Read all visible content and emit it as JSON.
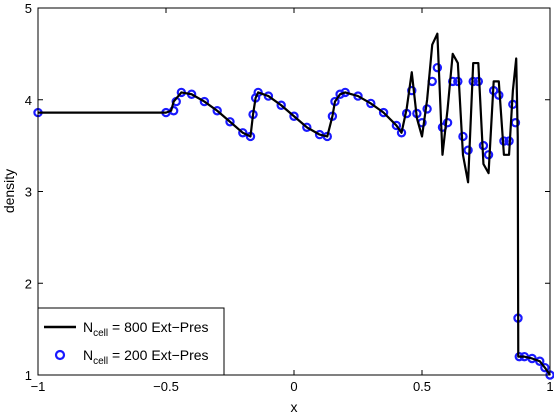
{
  "chart_data": {
    "type": "line",
    "xlabel": "x",
    "ylabel": "density",
    "xlim": [
      -1,
      1
    ],
    "ylim": [
      1,
      5
    ],
    "x_ticks": [
      -1,
      -0.5,
      0,
      0.5,
      1
    ],
    "x_tick_labels": [
      "−1",
      "−0.5",
      "0",
      "0.5",
      "1"
    ],
    "y_ticks": [
      1,
      2,
      3,
      4,
      5
    ],
    "y_tick_labels": [
      "1",
      "2",
      "3",
      "4",
      "5"
    ],
    "grid": false,
    "legend_position": "bottom-left",
    "series": [
      {
        "name_main": "N",
        "name_sub": "cell",
        "name_rest": " = 800 Ext−Pres",
        "style": "line",
        "color": "#000000",
        "x": [
          -1,
          -0.5,
          -0.48,
          -0.47,
          -0.44,
          -0.4,
          -0.35,
          -0.3,
          -0.25,
          -0.2,
          -0.17,
          -0.16,
          -0.15,
          -0.14,
          -0.1,
          -0.05,
          0.0,
          0.05,
          0.1,
          0.13,
          0.15,
          0.16,
          0.18,
          0.2,
          0.25,
          0.3,
          0.35,
          0.4,
          0.42,
          0.44,
          0.46,
          0.48,
          0.5,
          0.52,
          0.54,
          0.56,
          0.58,
          0.6,
          0.62,
          0.64,
          0.66,
          0.68,
          0.7,
          0.72,
          0.74,
          0.76,
          0.78,
          0.8,
          0.82,
          0.84,
          0.855,
          0.868,
          0.874,
          0.876,
          0.88,
          0.9,
          0.93,
          0.96,
          0.98,
          1.0
        ],
        "y": [
          3.86,
          3.86,
          3.88,
          3.98,
          4.08,
          4.06,
          3.98,
          3.88,
          3.76,
          3.64,
          3.6,
          3.84,
          4.02,
          4.08,
          4.04,
          3.94,
          3.82,
          3.7,
          3.62,
          3.6,
          3.82,
          3.98,
          4.06,
          4.08,
          4.04,
          3.96,
          3.86,
          3.72,
          3.64,
          3.9,
          4.3,
          3.8,
          3.6,
          4.0,
          4.6,
          4.72,
          3.4,
          3.9,
          4.5,
          4.4,
          3.4,
          3.1,
          4.4,
          4.4,
          3.3,
          3.2,
          4.2,
          4.2,
          3.4,
          3.4,
          4.1,
          4.45,
          3.6,
          1.2,
          1.2,
          1.2,
          1.18,
          1.15,
          1.08,
          1.0
        ]
      },
      {
        "name_main": "N",
        "name_sub": "cell",
        "name_rest": " = 200 Ext−Pres",
        "style": "markers",
        "color": "#1a1aff",
        "x": [
          -1,
          -0.5,
          -0.47,
          -0.46,
          -0.44,
          -0.4,
          -0.35,
          -0.3,
          -0.25,
          -0.2,
          -0.17,
          -0.16,
          -0.15,
          -0.14,
          -0.1,
          -0.05,
          0.0,
          0.05,
          0.1,
          0.13,
          0.15,
          0.16,
          0.18,
          0.2,
          0.25,
          0.3,
          0.35,
          0.4,
          0.42,
          0.44,
          0.46,
          0.48,
          0.5,
          0.52,
          0.54,
          0.56,
          0.58,
          0.6,
          0.62,
          0.64,
          0.66,
          0.68,
          0.7,
          0.72,
          0.74,
          0.76,
          0.78,
          0.8,
          0.82,
          0.84,
          0.855,
          0.865,
          0.875,
          0.88,
          0.9,
          0.93,
          0.96,
          0.98,
          1.0
        ],
        "y": [
          3.86,
          3.86,
          3.88,
          3.98,
          4.08,
          4.06,
          3.98,
          3.88,
          3.76,
          3.64,
          3.6,
          3.84,
          4.02,
          4.08,
          4.04,
          3.94,
          3.82,
          3.7,
          3.62,
          3.6,
          3.82,
          3.98,
          4.06,
          4.08,
          4.04,
          3.96,
          3.86,
          3.72,
          3.64,
          3.85,
          4.1,
          3.85,
          3.75,
          3.9,
          4.2,
          4.35,
          3.7,
          3.75,
          4.2,
          4.2,
          3.6,
          3.45,
          4.2,
          4.2,
          3.5,
          3.4,
          4.1,
          4.05,
          3.55,
          3.55,
          3.95,
          3.75,
          1.62,
          1.2,
          1.2,
          1.18,
          1.15,
          1.08,
          1.0
        ]
      }
    ]
  }
}
